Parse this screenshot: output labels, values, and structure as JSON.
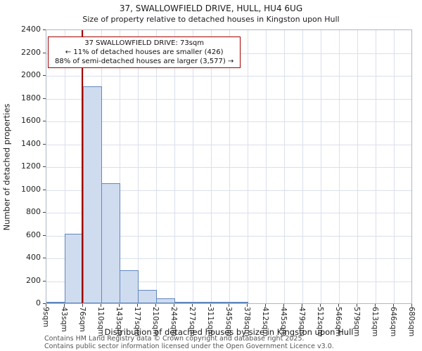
{
  "header": {
    "title": "37, SWALLOWFIELD DRIVE, HULL, HU4 6UG",
    "subtitle": "Size of property relative to detached houses in Kingston upon Hull"
  },
  "chart_data": {
    "type": "bar",
    "histogram": true,
    "title": "37, SWALLOWFIELD DRIVE, HULL, HU4 6UG",
    "subtitle": "Size of property relative to detached houses in Kingston upon Hull",
    "categories": [
      "9sqm",
      "43sqm",
      "76sqm",
      "110sqm",
      "143sqm",
      "177sqm",
      "210sqm",
      "244sqm",
      "277sqm",
      "311sqm",
      "345sqm",
      "378sqm",
      "412sqm",
      "445sqm",
      "479sqm",
      "512sqm",
      "546sqm",
      "579sqm",
      "613sqm",
      "646sqm",
      "680sqm"
    ],
    "bin_edges": [
      9,
      43,
      76,
      110,
      143,
      177,
      210,
      244,
      277,
      311,
      345,
      378,
      412,
      445,
      479,
      512,
      546,
      579,
      613,
      646,
      680
    ],
    "unit": "sqm",
    "values": [
      10,
      610,
      1900,
      1050,
      290,
      115,
      45,
      15,
      8,
      5,
      5,
      0,
      0,
      0,
      0,
      0,
      0,
      0,
      0,
      0
    ],
    "xlabel": "Distribution of detached houses by size in Kingston upon Hull",
    "ylabel": "Number of detached properties",
    "ylim": [
      0,
      2400
    ],
    "ytick_step": 200,
    "grid": true,
    "legend": "none",
    "marker": {
      "value": 73,
      "label": "37 SWALLOWFIELD DRIVE: 73sqm"
    },
    "annotation": {
      "line1": "37 SWALLOWFIELD DRIVE: 73sqm",
      "line2": "← 11% of detached houses are smaller (426)",
      "line3": "88% of semi-detached houses are larger (3,577) →"
    },
    "colors": {
      "bar_fill": "#cfdcef",
      "bar_edge": "#6188bd",
      "marker_line": "#a40000",
      "annotation_border": "#a40000",
      "grid": "#d9dfec"
    }
  },
  "footer": {
    "line1": "Contains HM Land Registry data © Crown copyright and database right 2025.",
    "line2": "Contains public sector information licensed under the Open Government Licence v3.0."
  }
}
